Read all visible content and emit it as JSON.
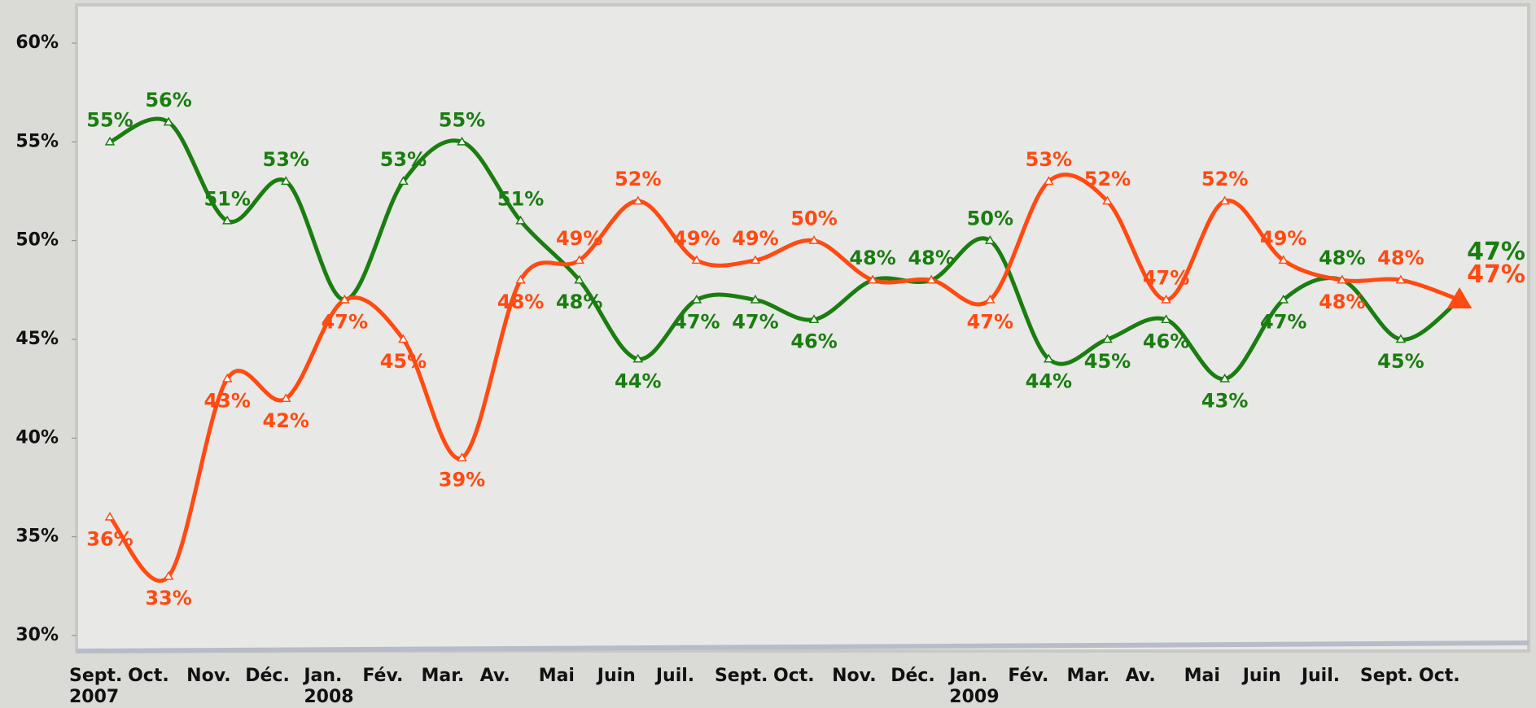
{
  "chart_data": {
    "type": "line",
    "categories": [
      "Sept.\n2007",
      "Oct.",
      "Nov.",
      "Déc.",
      "Jan.\n2008",
      "Fév.",
      "Mar.",
      "Av.",
      "Mai",
      "Juin",
      "Juil.",
      "Sept.",
      "Oct.",
      "Nov.",
      "Déc.",
      "Jan.\n2009",
      "Fév.",
      "Mar.",
      "Av.",
      "Mai",
      "Juin",
      "Juil.",
      "Sept.",
      "Oct."
    ],
    "series": [
      {
        "color": "#1a7d10",
        "values": [
          55,
          56,
          51,
          53,
          47,
          53,
          55,
          51,
          48,
          44,
          47,
          47,
          46,
          48,
          48,
          50,
          44,
          45,
          46,
          43,
          47,
          48,
          45,
          47
        ],
        "value_labels": [
          "55%",
          "56%",
          "51%",
          "53%",
          null,
          "53%",
          "55%",
          "51%",
          "48%",
          "44%",
          "47%",
          "47%",
          "46%",
          "48%",
          "48%",
          "50%",
          "44%",
          "45%",
          "46%",
          "43%",
          "47%",
          "48%",
          "45%",
          "47%"
        ]
      },
      {
        "color": "#ff4a12",
        "values": [
          36,
          33,
          43,
          42,
          47,
          45,
          39,
          48,
          49,
          52,
          49,
          49,
          50,
          48,
          48,
          47,
          53,
          52,
          47,
          52,
          49,
          48,
          48,
          47
        ],
        "value_labels": [
          "36%",
          "33%",
          "43%",
          "42%",
          "47%",
          "45%",
          "39%",
          "48%",
          "49%",
          "52%",
          "49%",
          "49%",
          "50%",
          null,
          null,
          "47%",
          "53%",
          "52%",
          "47%",
          "52%",
          "49%",
          "48%",
          "48%",
          "47%"
        ]
      }
    ],
    "ylim": [
      30,
      60
    ],
    "yticks": [
      {
        "value": 30,
        "label": "30%"
      },
      {
        "value": 35,
        "label": "35%"
      },
      {
        "value": 40,
        "label": "40%"
      },
      {
        "value": 45,
        "label": "45%"
      },
      {
        "value": 50,
        "label": "50%"
      },
      {
        "value": 55,
        "label": "55%"
      },
      {
        "value": 60,
        "label": "60%"
      }
    ]
  }
}
